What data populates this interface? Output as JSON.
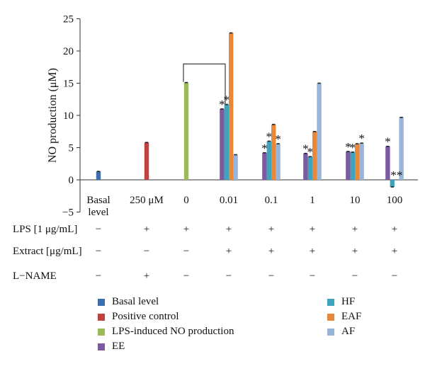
{
  "chart_data": {
    "type": "bar",
    "ylabel": "NO production (μM)",
    "ylim": [
      -5,
      25
    ],
    "yticks": [
      -5,
      0,
      5,
      10,
      15,
      20,
      25
    ],
    "categories": [
      {
        "label": "Basal level",
        "lines": [
          "Basal",
          "level"
        ]
      },
      {
        "label": "250 μM",
        "lines": [
          "250 μM"
        ]
      },
      {
        "label": "0",
        "lines": [
          "0"
        ]
      },
      {
        "label": "0.01",
        "lines": [
          "0.01"
        ]
      },
      {
        "label": "0.1",
        "lines": [
          "0.1"
        ]
      },
      {
        "label": "1",
        "lines": [
          "1"
        ]
      },
      {
        "label": "10",
        "lines": [
          "10"
        ]
      },
      {
        "label": "100",
        "lines": [
          "100"
        ]
      }
    ],
    "series": [
      {
        "name": "Basal level",
        "color": "#3d6fb0",
        "values": [
          1.3,
          null,
          null,
          null,
          null,
          null,
          null,
          null
        ]
      },
      {
        "name": "Positive control",
        "color": "#c0413e",
        "values": [
          null,
          5.8,
          null,
          null,
          null,
          null,
          null,
          null
        ]
      },
      {
        "name": "LPS-induced NO production",
        "color": "#9bbb59",
        "values": [
          null,
          null,
          15.1,
          null,
          null,
          null,
          null,
          null
        ]
      },
      {
        "name": "EE",
        "color": "#7b5a9f",
        "values": [
          null,
          null,
          null,
          11.0,
          4.2,
          4.1,
          4.4,
          5.2
        ]
      },
      {
        "name": "HF",
        "color": "#3ea3bc",
        "values": [
          null,
          null,
          null,
          11.7,
          6.0,
          3.6,
          4.3,
          -1.1
        ]
      },
      {
        "name": "EAF",
        "color": "#e8883a",
        "values": [
          null,
          null,
          null,
          22.8,
          8.6,
          7.5,
          5.6,
          null
        ]
      },
      {
        "name": "AF",
        "color": "#98b4d8",
        "values": [
          null,
          null,
          null,
          3.9,
          5.6,
          15.0,
          5.7,
          9.7
        ]
      }
    ],
    "significance": [
      {
        "category": "0.01",
        "series": "EE",
        "text": "*"
      },
      {
        "category": "0.01",
        "series": "HF",
        "text": "*"
      },
      {
        "category": "0.1",
        "series": "EE",
        "text": "*"
      },
      {
        "category": "0.1",
        "series": "HF",
        "text": "*"
      },
      {
        "category": "0.1",
        "series": "AF",
        "text": "*"
      },
      {
        "category": "1",
        "series": "EE",
        "text": "*"
      },
      {
        "category": "1",
        "series": "HF",
        "text": "*"
      },
      {
        "category": "10",
        "series": "EE",
        "text": "*"
      },
      {
        "category": "10",
        "series": "HF",
        "text": "*"
      },
      {
        "category": "10",
        "series": "AF",
        "text": "*"
      },
      {
        "category": "100",
        "series": "EE",
        "text": "*"
      },
      {
        "category": "100",
        "series": "HF",
        "text": "**"
      }
    ],
    "bracket": {
      "from": "0",
      "to": "0.01",
      "level": 18
    }
  },
  "conditions": [
    {
      "label": "LPS [1 μg/mL]",
      "values": [
        "−",
        "+",
        "+",
        "+",
        "+",
        "+",
        "+",
        "+"
      ]
    },
    {
      "label": "Extract [μg/mL]",
      "values": [
        "−",
        "−",
        "−",
        "+",
        "+",
        "+",
        "+",
        "+"
      ]
    },
    {
      "label": "L−NAME",
      "values": [
        "−",
        "+",
        "−",
        "−",
        "−",
        "−",
        "−",
        "−"
      ]
    }
  ],
  "legend": [
    {
      "label": "Basal level",
      "color": "#3d6fb0"
    },
    {
      "label": "Positive control",
      "color": "#c0413e"
    },
    {
      "label": "LPS-induced NO production",
      "color": "#9bbb59"
    },
    {
      "label": "EE",
      "color": "#7b5a9f"
    },
    {
      "label": "HF",
      "color": "#3ea3bc"
    },
    {
      "label": "EAF",
      "color": "#e8883a"
    },
    {
      "label": "AF",
      "color": "#98b4d8"
    }
  ]
}
